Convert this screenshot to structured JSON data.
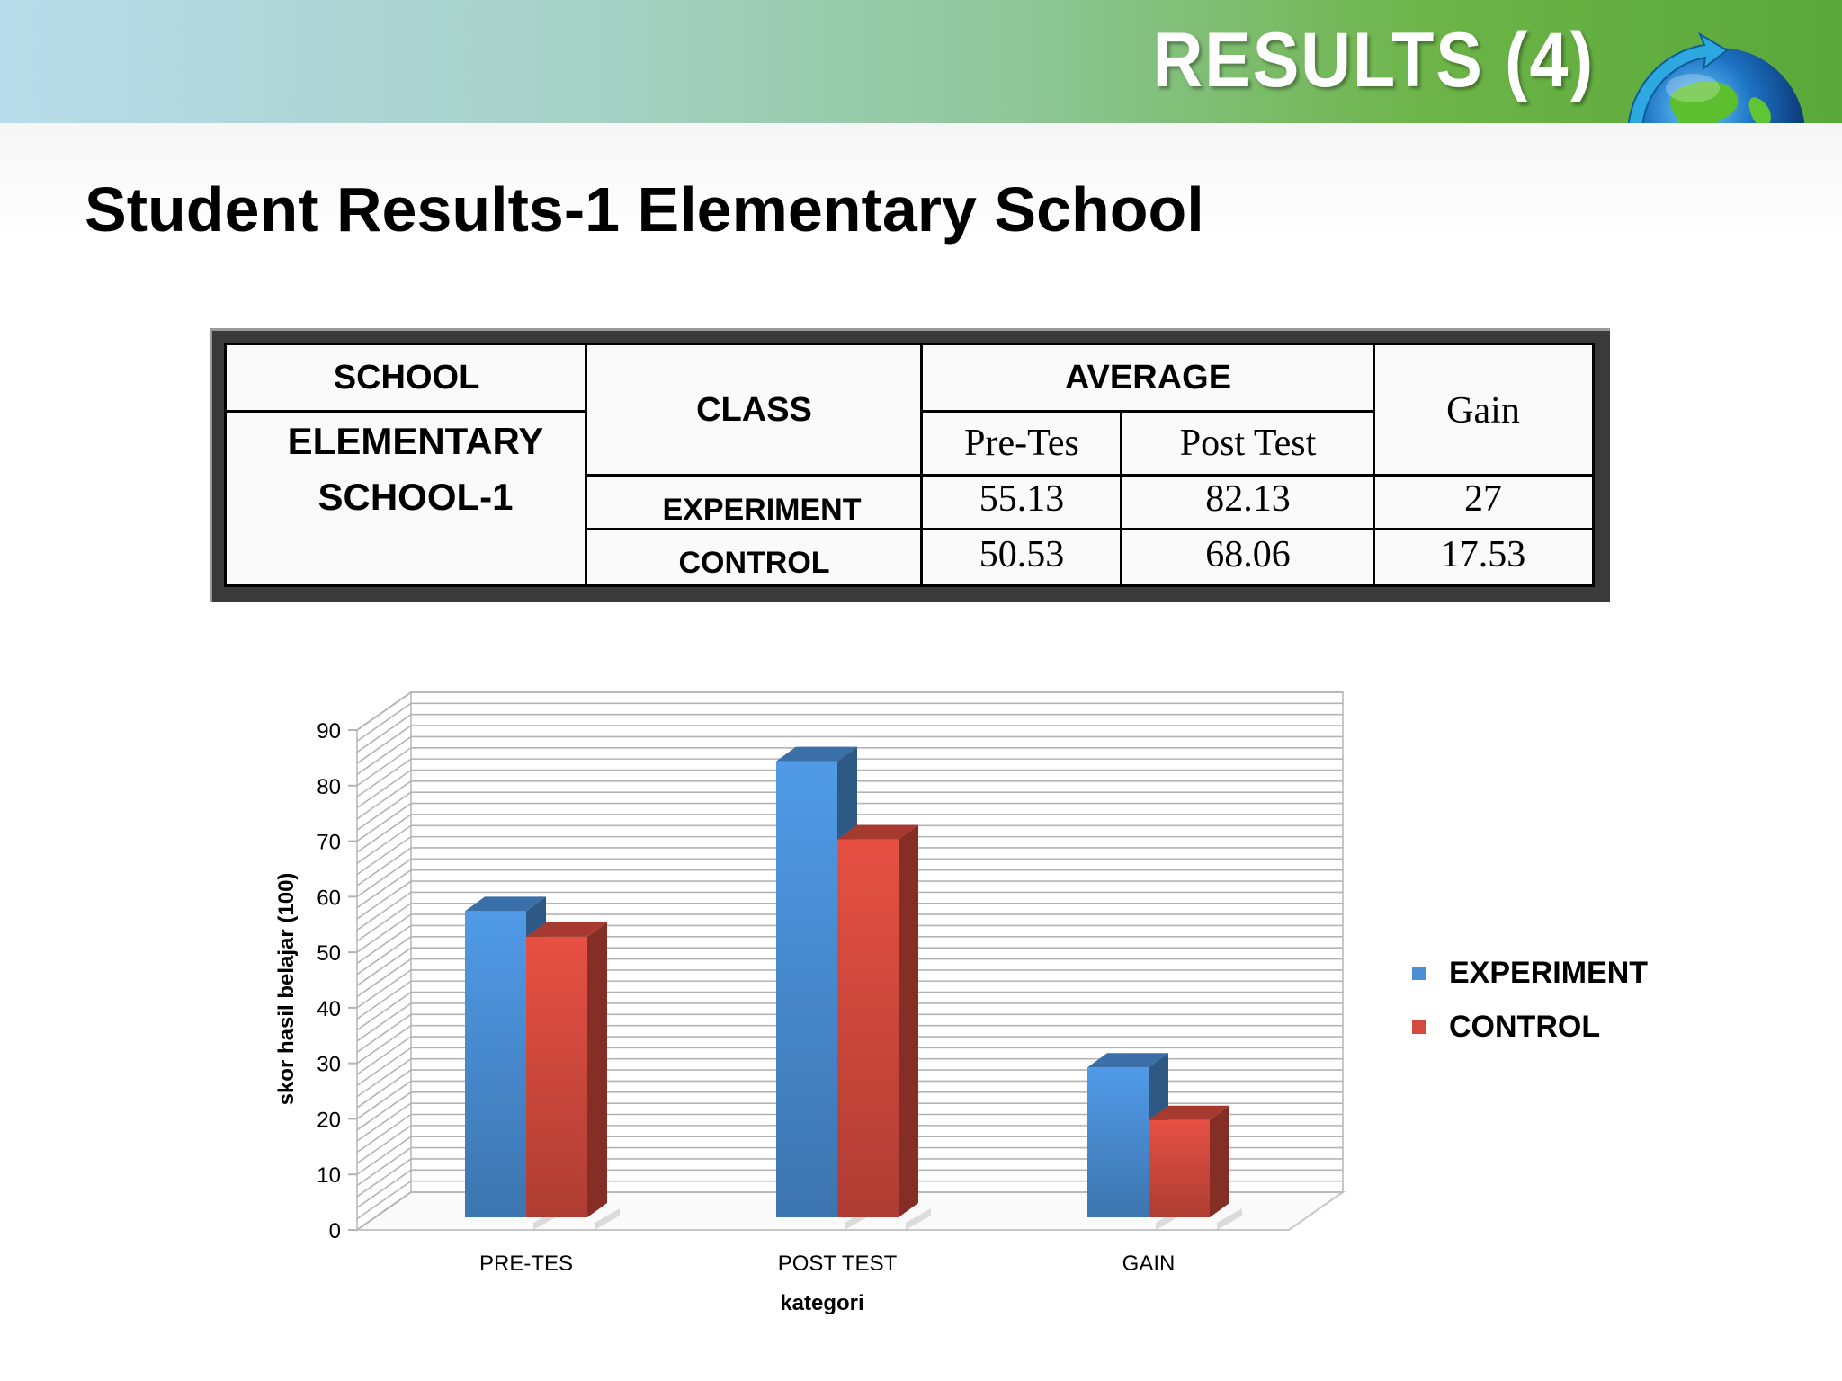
{
  "slide": {
    "banner_title": "RESULTS (4)",
    "subtitle": "Student Results-1 Elementary School"
  },
  "table": {
    "school_header": "SCHOOL",
    "class_header": "CLASS",
    "average_header": "AVERAGE",
    "gain_header": "Gain",
    "pre_header": "Pre-Tes",
    "post_header": "Post Test",
    "school_line1": "ELEMENTARY",
    "school_line2": "SCHOOL-1",
    "rows": [
      {
        "class": "EXPERIMENT",
        "pre": "55.13",
        "post": "82.13",
        "gain": "27"
      },
      {
        "class": "CONTROL",
        "pre": "50.53",
        "post": "68.06",
        "gain": "17.53"
      }
    ]
  },
  "chart_data": {
    "type": "bar",
    "categories": [
      "PRE-TES",
      "POST TEST",
      "GAIN"
    ],
    "series": [
      {
        "name": "EXPERIMENT",
        "values": [
          55.13,
          82.13,
          27
        ],
        "color": "#4a8fd6"
      },
      {
        "name": "CONTROL",
        "values": [
          50.53,
          68.06,
          17.53
        ],
        "color": "#d54a3e"
      }
    ],
    "xlabel": "kategori",
    "ylabel": "skor hasil belajar (100)",
    "ylim": [
      0,
      90
    ],
    "yticks": [
      0,
      10,
      20,
      30,
      40,
      50,
      60,
      70,
      80,
      90
    ],
    "grid": true,
    "legend_position": "right",
    "style": "3d"
  },
  "legend": {
    "items": [
      {
        "label": "EXPERIMENT",
        "color": "#4a8fd6"
      },
      {
        "label": "CONTROL",
        "color": "#d54a3e"
      }
    ]
  }
}
